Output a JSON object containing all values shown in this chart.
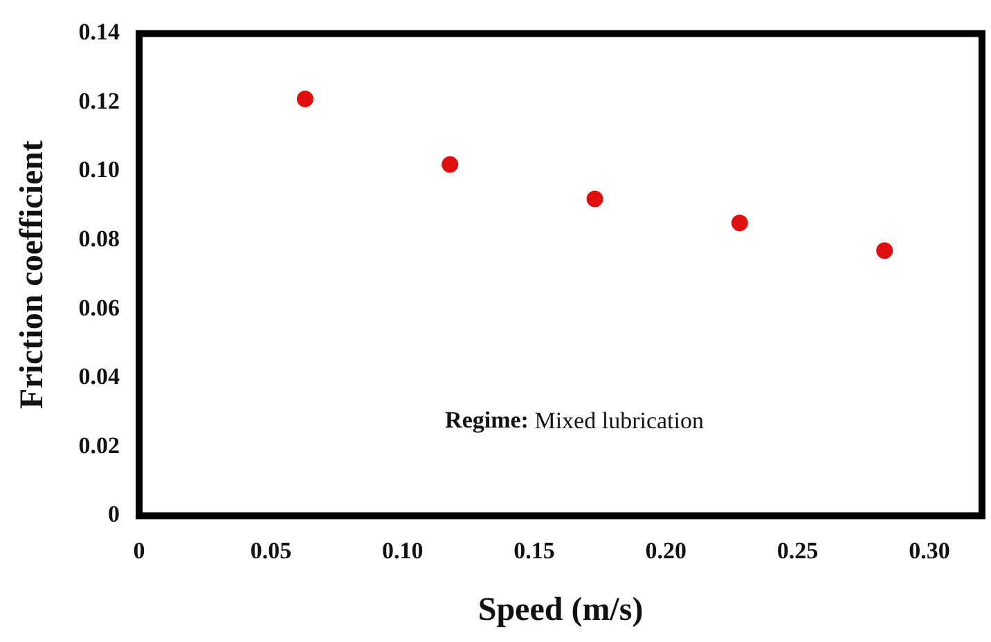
{
  "chart_data": {
    "type": "scatter",
    "xlabel": "Speed (m/s)",
    "ylabel": "Friction coefficient",
    "x": [
      0.063,
      0.118,
      0.173,
      0.228,
      0.283
    ],
    "series": [
      {
        "color": "#e01010",
        "values": [
          0.121,
          0.102,
          0.092,
          0.085,
          0.077
        ]
      }
    ],
    "xlim": [
      0,
      0.32
    ],
    "xticks": [
      0,
      0.05,
      {
        "value": 0.1,
        "label": "0.10"
      },
      0.15,
      {
        "value": 0.2,
        "label": "0.20"
      },
      0.25,
      {
        "value": 0.3,
        "label": "0.30"
      }
    ],
    "ylim": [
      0,
      0.14
    ],
    "yticks": [
      0,
      0.02,
      0.04,
      0.06,
      0.08,
      {
        "value": 0.1,
        "label": "0.10"
      },
      0.12,
      0.14
    ],
    "annotations": [
      "Regime: Mixed lubrication"
    ],
    "grid": false,
    "legend": false,
    "marker": "circle"
  }
}
